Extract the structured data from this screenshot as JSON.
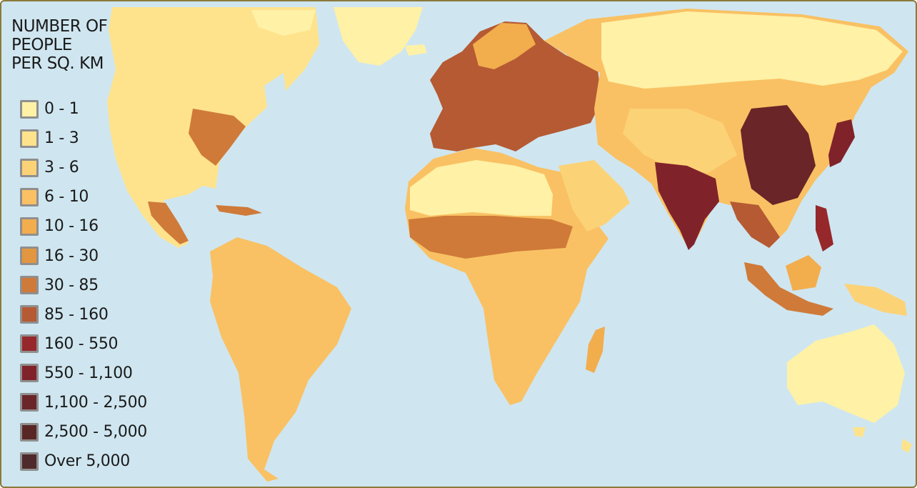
{
  "legend": {
    "title_lines": [
      "NUMBER OF",
      "PEOPLE",
      "PER SQ. KM"
    ],
    "classes": [
      {
        "label": "0 - 1",
        "color": "#fff1a6"
      },
      {
        "label": "1 - 3",
        "color": "#ffe38c"
      },
      {
        "label": "3 - 6",
        "color": "#fcd277"
      },
      {
        "label": "6 - 10",
        "color": "#f9c163"
      },
      {
        "label": "10 - 16",
        "color": "#f2ad4d"
      },
      {
        "label": "16 - 30",
        "color": "#e2963f"
      },
      {
        "label": "30 - 85",
        "color": "#cf7a39"
      },
      {
        "label": "85 - 160",
        "color": "#b55a33"
      },
      {
        "label": "160 - 550",
        "color": "#96282b"
      },
      {
        "label": "550 - 1,100",
        "color": "#80222a"
      },
      {
        "label": "1,100 - 2,500",
        "color": "#6a2528"
      },
      {
        "label": "2,500 - 5,000",
        "color": "#592626"
      },
      {
        "label": "Over 5,000",
        "color": "#4e2a2c"
      }
    ]
  },
  "colors": {
    "ocean": "#cfe6f0",
    "frame_border": "#8a7a3a",
    "swatch_border": "#8f8f8f"
  }
}
